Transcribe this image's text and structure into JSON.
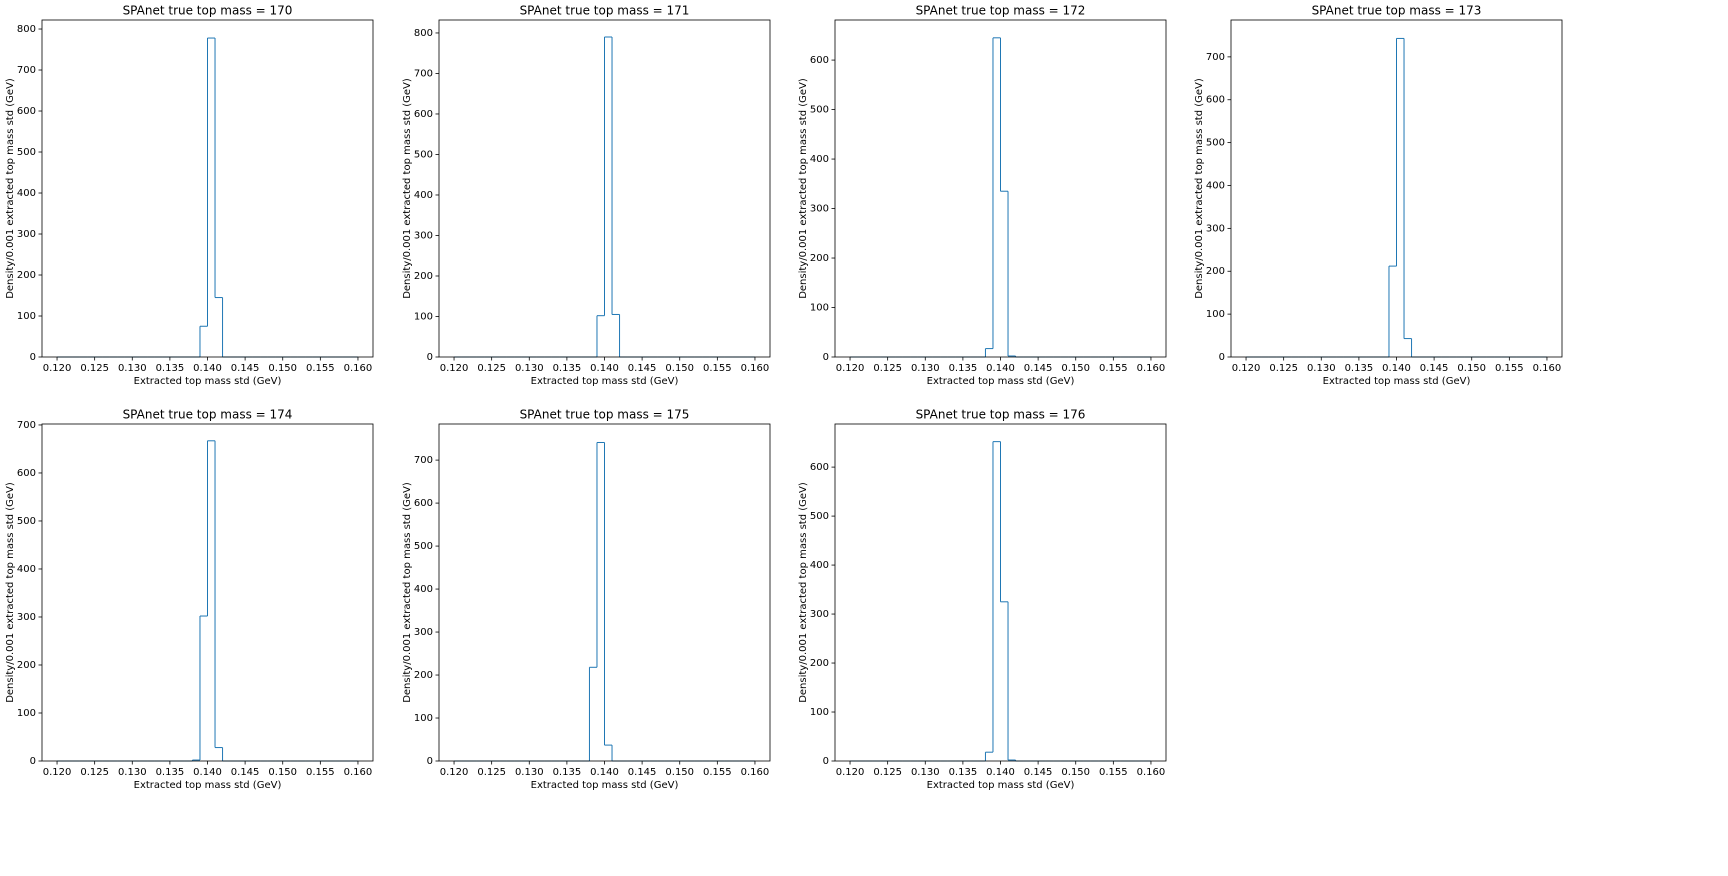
{
  "chart_data": [
    {
      "type": "histogram",
      "title": "SPAnet true top mass = 170",
      "xlabel": "Extracted top mass std (GeV)",
      "ylabel": "Density/0.001 extracted top mass std (GeV)",
      "color": "#1f77b4",
      "bins": [
        0.12,
        0.121,
        0.122,
        0.123,
        0.124,
        0.125,
        0.126,
        0.127,
        0.128,
        0.129,
        0.13,
        0.131,
        0.132,
        0.133,
        0.134,
        0.135,
        0.136,
        0.137,
        0.138,
        0.139,
        0.14,
        0.141,
        0.142,
        0.143,
        0.144,
        0.145,
        0.146,
        0.147,
        0.148,
        0.149,
        0.15,
        0.151,
        0.152,
        0.153,
        0.154,
        0.155,
        0.156,
        0.157,
        0.158,
        0.159,
        0.16
      ],
      "values": [
        0,
        0,
        0,
        0,
        0,
        0,
        0,
        0,
        0,
        0,
        0,
        0,
        0,
        0,
        0,
        0,
        0,
        0,
        0,
        75,
        778,
        145,
        0,
        0,
        0,
        0,
        0,
        0,
        0,
        0,
        0,
        0,
        0,
        0,
        0,
        0,
        0,
        0,
        0,
        0
      ],
      "xlim": [
        0.118,
        0.162
      ],
      "ylim": [
        0,
        822
      ],
      "xticks": [
        {
          "value": 0.12,
          "label": "0.120"
        },
        0.125,
        {
          "value": 0.13,
          "label": "0.130"
        },
        0.135,
        {
          "value": 0.14,
          "label": "0.140"
        },
        0.145,
        {
          "value": 0.15,
          "label": "0.150"
        },
        0.155,
        {
          "value": 0.16,
          "label": "0.160"
        }
      ],
      "yticks": [
        0,
        100,
        200,
        300,
        400,
        500,
        600,
        700,
        800
      ]
    },
    {
      "type": "histogram",
      "title": "SPAnet true top mass = 171",
      "xlabel": "Extracted top mass std (GeV)",
      "ylabel": "Density/0.001 extracted top mass std (GeV)",
      "color": "#1f77b4",
      "bins": [
        0.12,
        0.121,
        0.122,
        0.123,
        0.124,
        0.125,
        0.126,
        0.127,
        0.128,
        0.129,
        0.13,
        0.131,
        0.132,
        0.133,
        0.134,
        0.135,
        0.136,
        0.137,
        0.138,
        0.139,
        0.14,
        0.141,
        0.142,
        0.143,
        0.144,
        0.145,
        0.146,
        0.147,
        0.148,
        0.149,
        0.15,
        0.151,
        0.152,
        0.153,
        0.154,
        0.155,
        0.156,
        0.157,
        0.158,
        0.159,
        0.16
      ],
      "values": [
        0,
        0,
        0,
        0,
        0,
        0,
        0,
        0,
        0,
        0,
        0,
        0,
        0,
        0,
        0,
        0,
        0,
        0,
        0,
        102,
        790,
        105,
        0,
        0,
        0,
        0,
        0,
        0,
        0,
        0,
        0,
        0,
        0,
        0,
        0,
        0,
        0,
        0,
        0,
        0
      ],
      "xlim": [
        0.118,
        0.162
      ],
      "ylim": [
        0,
        832
      ],
      "xticks": [
        {
          "value": 0.12,
          "label": "0.120"
        },
        0.125,
        {
          "value": 0.13,
          "label": "0.130"
        },
        0.135,
        {
          "value": 0.14,
          "label": "0.140"
        },
        0.145,
        {
          "value": 0.15,
          "label": "0.150"
        },
        0.155,
        {
          "value": 0.16,
          "label": "0.160"
        }
      ],
      "yticks": [
        0,
        100,
        200,
        300,
        400,
        500,
        600,
        700,
        800
      ]
    },
    {
      "type": "histogram",
      "title": "SPAnet true top mass = 172",
      "xlabel": "Extracted top mass std (GeV)",
      "ylabel": "Density/0.001 extracted top mass std (GeV)",
      "color": "#1f77b4",
      "bins": [
        0.12,
        0.121,
        0.122,
        0.123,
        0.124,
        0.125,
        0.126,
        0.127,
        0.128,
        0.129,
        0.13,
        0.131,
        0.132,
        0.133,
        0.134,
        0.135,
        0.136,
        0.137,
        0.138,
        0.139,
        0.14,
        0.141,
        0.142,
        0.143,
        0.144,
        0.145,
        0.146,
        0.147,
        0.148,
        0.149,
        0.15,
        0.151,
        0.152,
        0.153,
        0.154,
        0.155,
        0.156,
        0.157,
        0.158,
        0.159,
        0.16
      ],
      "values": [
        0,
        0,
        0,
        0,
        0,
        0,
        0,
        0,
        0,
        0,
        0,
        0,
        0,
        0,
        0,
        0,
        0,
        0,
        17,
        645,
        335,
        2,
        0,
        0,
        0,
        0,
        0,
        0,
        0,
        0,
        0,
        0,
        0,
        0,
        0,
        0,
        0,
        0,
        0,
        0
      ],
      "xlim": [
        0.118,
        0.162
      ],
      "ylim": [
        0,
        681
      ],
      "xticks": [
        {
          "value": 0.12,
          "label": "0.120"
        },
        0.125,
        {
          "value": 0.13,
          "label": "0.130"
        },
        0.135,
        {
          "value": 0.14,
          "label": "0.140"
        },
        0.145,
        {
          "value": 0.15,
          "label": "0.150"
        },
        0.155,
        {
          "value": 0.16,
          "label": "0.160"
        }
      ],
      "yticks": [
        0,
        100,
        200,
        300,
        400,
        500,
        600
      ]
    },
    {
      "type": "histogram",
      "title": "SPAnet true top mass = 173",
      "xlabel": "Extracted top mass std (GeV)",
      "ylabel": "Density/0.001 extracted top mass std (GeV)",
      "color": "#1f77b4",
      "bins": [
        0.12,
        0.121,
        0.122,
        0.123,
        0.124,
        0.125,
        0.126,
        0.127,
        0.128,
        0.129,
        0.13,
        0.131,
        0.132,
        0.133,
        0.134,
        0.135,
        0.136,
        0.137,
        0.138,
        0.139,
        0.14,
        0.141,
        0.142,
        0.143,
        0.144,
        0.145,
        0.146,
        0.147,
        0.148,
        0.149,
        0.15,
        0.151,
        0.152,
        0.153,
        0.154,
        0.155,
        0.156,
        0.157,
        0.158,
        0.159,
        0.16
      ],
      "values": [
        0,
        0,
        0,
        0,
        0,
        0,
        0,
        0,
        0,
        0,
        0,
        0,
        0,
        0,
        0,
        0,
        0,
        0,
        0,
        212,
        743,
        43,
        0,
        0,
        0,
        0,
        0,
        0,
        0,
        0,
        0,
        0,
        0,
        0,
        0,
        0,
        0,
        0,
        0,
        0
      ],
      "xlim": [
        0.118,
        0.162
      ],
      "ylim": [
        0,
        786
      ],
      "xticks": [
        {
          "value": 0.12,
          "label": "0.120"
        },
        0.125,
        {
          "value": 0.13,
          "label": "0.130"
        },
        0.135,
        {
          "value": 0.14,
          "label": "0.140"
        },
        0.145,
        {
          "value": 0.15,
          "label": "0.150"
        },
        0.155,
        {
          "value": 0.16,
          "label": "0.160"
        }
      ],
      "yticks": [
        0,
        100,
        200,
        300,
        400,
        500,
        600,
        700
      ]
    },
    {
      "type": "histogram",
      "title": "SPAnet true top mass = 174",
      "xlabel": "Extracted top mass std (GeV)",
      "ylabel": "Density/0.001 extracted top mass std (GeV)",
      "color": "#1f77b4",
      "bins": [
        0.12,
        0.121,
        0.122,
        0.123,
        0.124,
        0.125,
        0.126,
        0.127,
        0.128,
        0.129,
        0.13,
        0.131,
        0.132,
        0.133,
        0.134,
        0.135,
        0.136,
        0.137,
        0.138,
        0.139,
        0.14,
        0.141,
        0.142,
        0.143,
        0.144,
        0.145,
        0.146,
        0.147,
        0.148,
        0.149,
        0.15,
        0.151,
        0.152,
        0.153,
        0.154,
        0.155,
        0.156,
        0.157,
        0.158,
        0.159,
        0.16
      ],
      "values": [
        0,
        0,
        0,
        0,
        0,
        0,
        0,
        0,
        0,
        0,
        0,
        0,
        0,
        0,
        0,
        0,
        0,
        0,
        2,
        302,
        667,
        28,
        0,
        0,
        0,
        0,
        0,
        0,
        0,
        0,
        0,
        0,
        0,
        0,
        0,
        0,
        0,
        0,
        0,
        0
      ],
      "xlim": [
        0.118,
        0.162
      ],
      "ylim": [
        0,
        702
      ],
      "xticks": [
        {
          "value": 0.12,
          "label": "0.120"
        },
        0.125,
        {
          "value": 0.13,
          "label": "0.130"
        },
        0.135,
        {
          "value": 0.14,
          "label": "0.140"
        },
        0.145,
        {
          "value": 0.15,
          "label": "0.150"
        },
        0.155,
        {
          "value": 0.16,
          "label": "0.160"
        }
      ],
      "yticks": [
        0,
        100,
        200,
        300,
        400,
        500,
        600,
        700
      ]
    },
    {
      "type": "histogram",
      "title": "SPAnet true top mass = 175",
      "xlabel": "Extracted top mass std (GeV)",
      "ylabel": "Density/0.001 extracted top mass std (GeV)",
      "color": "#1f77b4",
      "bins": [
        0.12,
        0.121,
        0.122,
        0.123,
        0.124,
        0.125,
        0.126,
        0.127,
        0.128,
        0.129,
        0.13,
        0.131,
        0.132,
        0.133,
        0.134,
        0.135,
        0.136,
        0.137,
        0.138,
        0.139,
        0.14,
        0.141,
        0.142,
        0.143,
        0.144,
        0.145,
        0.146,
        0.147,
        0.148,
        0.149,
        0.15,
        0.151,
        0.152,
        0.153,
        0.154,
        0.155,
        0.156,
        0.157,
        0.158,
        0.159,
        0.16
      ],
      "values": [
        0,
        0,
        0,
        0,
        0,
        0,
        0,
        0,
        0,
        0,
        0,
        0,
        0,
        0,
        0,
        0,
        0,
        0,
        218,
        741,
        37,
        0,
        0,
        0,
        0,
        0,
        0,
        0,
        0,
        0,
        0,
        0,
        0,
        0,
        0,
        0,
        0,
        0,
        0,
        0
      ],
      "xlim": [
        0.118,
        0.162
      ],
      "ylim": [
        0,
        784
      ],
      "xticks": [
        {
          "value": 0.12,
          "label": "0.120"
        },
        0.125,
        {
          "value": 0.13,
          "label": "0.130"
        },
        0.135,
        {
          "value": 0.14,
          "label": "0.140"
        },
        0.145,
        {
          "value": 0.15,
          "label": "0.150"
        },
        0.155,
        {
          "value": 0.16,
          "label": "0.160"
        }
      ],
      "yticks": [
        0,
        100,
        200,
        300,
        400,
        500,
        600,
        700
      ]
    },
    {
      "type": "histogram",
      "title": "SPAnet true top mass = 176",
      "xlabel": "Extracted top mass std (GeV)",
      "ylabel": "Density/0.001 extracted top mass std (GeV)",
      "color": "#1f77b4",
      "bins": [
        0.12,
        0.121,
        0.122,
        0.123,
        0.124,
        0.125,
        0.126,
        0.127,
        0.128,
        0.129,
        0.13,
        0.131,
        0.132,
        0.133,
        0.134,
        0.135,
        0.136,
        0.137,
        0.138,
        0.139,
        0.14,
        0.141,
        0.142,
        0.143,
        0.144,
        0.145,
        0.146,
        0.147,
        0.148,
        0.149,
        0.15,
        0.151,
        0.152,
        0.153,
        0.154,
        0.155,
        0.156,
        0.157,
        0.158,
        0.159,
        0.16
      ],
      "values": [
        0,
        0,
        0,
        0,
        0,
        0,
        0,
        0,
        0,
        0,
        0,
        0,
        0,
        0,
        0,
        0,
        0,
        0,
        18,
        652,
        325,
        2,
        0,
        0,
        0,
        0,
        0,
        0,
        0,
        0,
        0,
        0,
        0,
        0,
        0,
        0,
        0,
        0,
        0,
        0
      ],
      "xlim": [
        0.118,
        0.162
      ],
      "ylim": [
        0,
        688
      ],
      "xticks": [
        {
          "value": 0.12,
          "label": "0.120"
        },
        0.125,
        {
          "value": 0.13,
          "label": "0.130"
        },
        0.135,
        {
          "value": 0.14,
          "label": "0.140"
        },
        0.145,
        {
          "value": 0.15,
          "label": "0.150"
        },
        0.155,
        {
          "value": 0.16,
          "label": "0.160"
        }
      ],
      "yticks": [
        0,
        100,
        200,
        300,
        400,
        500,
        600
      ]
    }
  ]
}
